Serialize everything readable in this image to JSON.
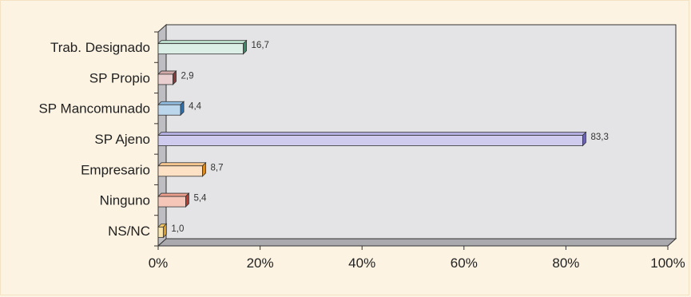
{
  "chart_data": {
    "type": "bar",
    "orientation": "horizontal",
    "categories": [
      "Trab. Designado",
      "SP Propio",
      "SP Mancomunado",
      "SP Ajeno",
      "Empresario",
      "Ninguno",
      "NS/NC"
    ],
    "values": [
      16.7,
      2.9,
      4.4,
      83.3,
      8.7,
      5.4,
      1.0
    ],
    "value_labels": [
      "16,7",
      "2,9",
      "4,4",
      "83,3",
      "8,7",
      "5,4",
      "1,0"
    ],
    "bar_colors": [
      {
        "front": "#dcefe6",
        "side": "#3a8a68",
        "top": "#b8dcc9"
      },
      {
        "front": "#e9cfcf",
        "side": "#8a3a3a",
        "top": "#d3aaaa"
      },
      {
        "front": "#bcd6ec",
        "side": "#2a72b4",
        "top": "#92bde0"
      },
      {
        "front": "#cfcbee",
        "side": "#6c64b0",
        "top": "#b3aee0"
      },
      {
        "front": "#fde1c4",
        "side": "#d98a1e",
        "top": "#f5c58f"
      },
      {
        "front": "#f6c6b8",
        "side": "#c0392b",
        "top": "#ec9f8c"
      },
      {
        "front": "#fbe4a8",
        "side": "#d99a1e",
        "top": "#f2c765"
      }
    ],
    "x_ticks": [
      "0%",
      "20%",
      "40%",
      "60%",
      "80%",
      "100%"
    ],
    "xlim": [
      0,
      100
    ],
    "grid": false,
    "title": "",
    "xlabel": "",
    "ylabel": ""
  },
  "colors": {
    "background": "#fdf3e2",
    "plot_area": "#e4e4e6",
    "side_wall": "#bdbdc2",
    "floor": "#a9a9ae"
  }
}
